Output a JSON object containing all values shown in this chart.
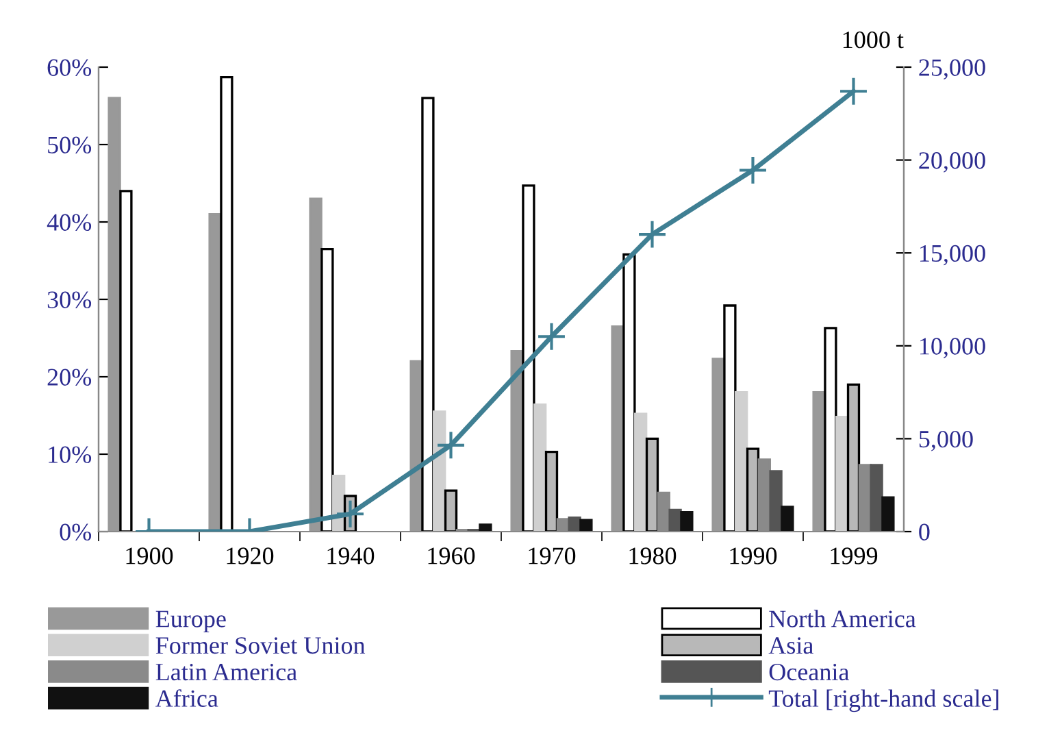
{
  "chart_data": {
    "type": "bar",
    "categories": [
      "1900",
      "1920",
      "1940",
      "1960",
      "1970",
      "1980",
      "1990",
      "1999"
    ],
    "series": [
      {
        "name": "Europe",
        "color": "#999999",
        "values": [
          56,
          41,
          43,
          22,
          23.3,
          26.5,
          22.3,
          18
        ]
      },
      {
        "name": "North America",
        "color": "#ffffff",
        "values": [
          44,
          58.7,
          36.5,
          56,
          44.7,
          35.8,
          29.2,
          26.3
        ]
      },
      {
        "name": "Former Soviet Union",
        "color": "#d0d0d0",
        "values": [
          null,
          null,
          7.2,
          15.5,
          16.4,
          15.2,
          18,
          14.8
        ]
      },
      {
        "name": "Asia",
        "color": "#b8b8b8",
        "values": [
          null,
          null,
          4.6,
          5.3,
          10.3,
          12,
          10.7,
          19
        ]
      },
      {
        "name": "Latin America",
        "color": "#8a8a8a",
        "values": [
          null,
          null,
          null,
          0.2,
          1.6,
          5,
          9.3,
          8.6
        ]
      },
      {
        "name": "Oceania",
        "color": "#555555",
        "values": [
          null,
          null,
          null,
          0.2,
          1.8,
          2.8,
          7.8,
          8.6
        ]
      },
      {
        "name": "Africa",
        "color": "#111111",
        "values": [
          null,
          null,
          null,
          0.9,
          1.5,
          2.5,
          3.2,
          4.4
        ]
      },
      {
        "name": "Total [right-hand scale]",
        "type": "line",
        "axis": "y2",
        "color": "#3f7f93",
        "marker": "cross",
        "values": [
          0,
          0,
          950,
          4650,
          10500,
          16000,
          19450,
          23700
        ]
      }
    ],
    "ylim": [
      0,
      60
    ],
    "yticks": [
      {
        "value": 0,
        "label": "0%"
      },
      {
        "value": 10,
        "label": "10%"
      },
      {
        "value": 20,
        "label": "20%"
      },
      {
        "value": 30,
        "label": "30%"
      },
      {
        "value": 40,
        "label": "40%"
      },
      {
        "value": 50,
        "label": "50%"
      },
      {
        "value": 60,
        "label": "60%"
      }
    ],
    "y2lim": [
      0,
      25000
    ],
    "y2ticks": [
      0,
      {
        "value": 5000,
        "label": "5,000"
      },
      {
        "value": 10000,
        "label": "10,000"
      },
      {
        "value": 15000,
        "label": "15,000"
      },
      {
        "value": 20000,
        "label": "20,000"
      },
      {
        "value": 25000,
        "label": "25,000"
      }
    ],
    "y2label": "1000 t",
    "legend": "bottom",
    "grid": false
  }
}
